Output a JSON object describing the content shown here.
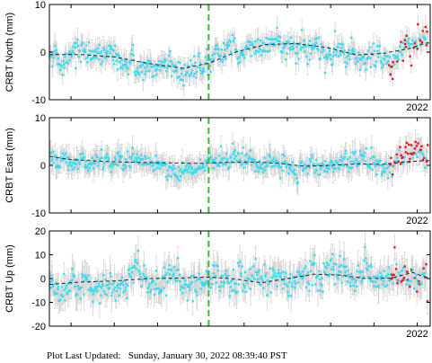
{
  "footer": {
    "label": "Plot Last Updated:",
    "timestamp": "Sunday, January 30, 2022 08:39:40 PST"
  },
  "colors": {
    "points": "#33ddf2",
    "recent_points": "#e8141a",
    "error_bars": "#cfcfcf",
    "trend": "#222222",
    "event_line": "#3cb83c"
  },
  "chart_data": [
    {
      "type": "scatter",
      "ylabel": "CRBT North (mm)",
      "xlim": [
        2013.5,
        2022.3
      ],
      "ylim": [
        -10,
        10
      ],
      "yticks": [
        -10,
        0,
        10
      ],
      "xtick_labels": [
        {
          "value": 2022,
          "label": "2022"
        }
      ],
      "event_line_x": 2017.18,
      "grid": false,
      "trend": [
        [
          2013.5,
          -0.5
        ],
        [
          2014.2,
          -0.5
        ],
        [
          2015.0,
          -1.0
        ],
        [
          2015.8,
          -2.4
        ],
        [
          2016.6,
          -3.4
        ],
        [
          2017.2,
          -2.3
        ],
        [
          2017.8,
          0.0
        ],
        [
          2018.5,
          1.6
        ],
        [
          2019.2,
          1.8
        ],
        [
          2019.9,
          1.0
        ],
        [
          2020.6,
          -0.6
        ],
        [
          2021.2,
          -0.3
        ],
        [
          2021.8,
          0.7
        ],
        [
          2022.2,
          1.9
        ]
      ],
      "noise_sd": 1.5,
      "error_bar": 1.8,
      "recent_from": 2021.35,
      "recent_offset": -1.2
    },
    {
      "type": "scatter",
      "ylabel": "CRBT East (mm)",
      "xlim": [
        2013.5,
        2022.3
      ],
      "ylim": [
        -10,
        10
      ],
      "yticks": [
        -10,
        0,
        10
      ],
      "xtick_labels": [
        {
          "value": 2022,
          "label": "2022"
        }
      ],
      "event_line_x": 2017.18,
      "grid": false,
      "trend": [
        [
          2013.5,
          1.9
        ],
        [
          2014.0,
          1.2
        ],
        [
          2014.8,
          0.8
        ],
        [
          2015.6,
          0.6
        ],
        [
          2016.4,
          0.5
        ],
        [
          2017.0,
          0.4
        ],
        [
          2017.6,
          0.6
        ],
        [
          2018.2,
          0.7
        ],
        [
          2018.8,
          0.4
        ],
        [
          2019.4,
          -0.2
        ],
        [
          2020.0,
          0.0
        ],
        [
          2020.6,
          0.3
        ],
        [
          2021.2,
          0.2
        ],
        [
          2021.7,
          0.7
        ],
        [
          2022.2,
          1.0
        ]
      ],
      "noise_sd": 1.2,
      "error_bar": 2.0,
      "recent_from": 2021.35,
      "recent_offset": 0.8
    },
    {
      "type": "scatter",
      "ylabel": "CRBT Up (mm)",
      "xlim": [
        2013.5,
        2022.3
      ],
      "ylim": [
        -20,
        20
      ],
      "yticks": [
        -20,
        -10,
        0,
        10,
        20
      ],
      "xtick_labels": [
        {
          "value": 2022,
          "label": "2022"
        }
      ],
      "event_line_x": 2017.18,
      "grid": false,
      "trend": [
        [
          2013.5,
          -2.5
        ],
        [
          2014.2,
          -1.5
        ],
        [
          2015.0,
          -1.0
        ],
        [
          2015.8,
          0.0
        ],
        [
          2016.6,
          0.3
        ],
        [
          2017.2,
          0.6
        ],
        [
          2017.8,
          -0.2
        ],
        [
          2018.4,
          -1.8
        ],
        [
          2019.0,
          0.0
        ],
        [
          2019.6,
          1.8
        ],
        [
          2020.2,
          1.5
        ],
        [
          2020.8,
          0.0
        ],
        [
          2021.4,
          0.2
        ],
        [
          2021.9,
          2.5
        ],
        [
          2022.2,
          0.5
        ]
      ],
      "noise_sd": 3.5,
      "error_bar": 5.0,
      "recent_from": 2021.35,
      "recent_offset": 0.0
    }
  ]
}
